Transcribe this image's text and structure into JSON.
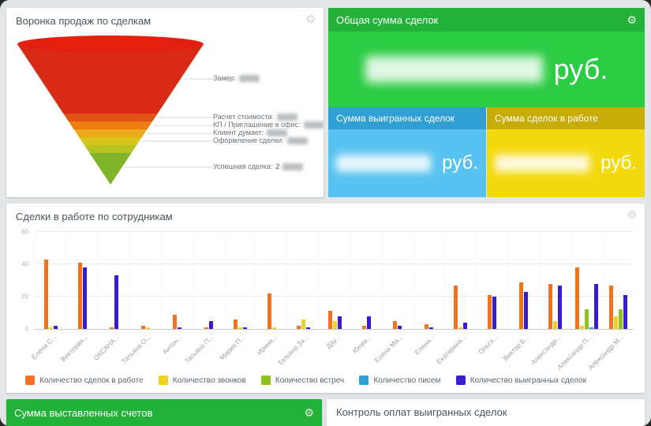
{
  "icons": {
    "gear": "⚙"
  },
  "colors": {
    "green_header": "#23b13a",
    "green_body": "#2ccc44",
    "blue_header": "#2f9fd4",
    "blue_body": "#58c3f0",
    "yellow_header": "#c7ac07",
    "yellow_body": "#f4d90f",
    "funnel_top": "#e3200f",
    "funnel_tip": "#6faa28"
  },
  "panels": {
    "funnel": {
      "title": "Воронка продаж по сделкам",
      "stages": [
        {
          "label": "Замер:",
          "value": ""
        },
        {
          "label": "Расчет стоимости:",
          "value": ""
        },
        {
          "label": "КП / Приглашение в офис:",
          "value": ""
        },
        {
          "label": "Клиент думает:",
          "value": ""
        },
        {
          "label": "Оформление сделки:",
          "value": ""
        },
        {
          "label": "Успешная сделка:",
          "value": "2"
        }
      ]
    },
    "totals": {
      "title": "Общая сумма сделок",
      "currency": "руб."
    },
    "won": {
      "title": "Сумма выигранных сделок",
      "currency": "руб."
    },
    "in_progress": {
      "title": "Сумма сделок в работе",
      "currency": "руб."
    },
    "by_employee": {
      "title": "Сделки в работе по сотрудникам"
    },
    "invoices": {
      "title": "Сумма выставленных счетов"
    },
    "payments": {
      "title": "Контроль оплат выигранных сделок"
    }
  },
  "chart_data": {
    "type": "bar",
    "title": "Сделки в работе по сотрудникам",
    "categories": [
      "Елена С...",
      "Виктория...",
      "ОКСАНА...",
      "Татьяна О...",
      "Антон...",
      "Татьяна П...",
      "Мария П...",
      "Ирина...",
      "Татьяна За...",
      "Дау...",
      "Юлия...",
      "Елена Ма...",
      "Елена...",
      "Екатерина...",
      "Ольга...",
      "Виктор Б...",
      "Александр...",
      "Александр П...",
      "Александр М..."
    ],
    "series": [
      {
        "name": "Количество сделок в работе",
        "color": "#f4711f",
        "values": [
          43,
          41,
          1,
          2,
          9,
          1,
          6,
          22,
          2,
          11,
          2,
          5,
          3,
          27,
          21,
          29,
          28,
          38,
          27
        ]
      },
      {
        "name": "Количество звонков",
        "color": "#f0d123",
        "values": [
          1,
          0,
          0,
          1,
          0,
          0,
          1,
          1,
          6,
          5,
          0,
          0,
          0,
          1,
          0,
          0,
          5,
          2,
          8
        ]
      },
      {
        "name": "Количество встреч",
        "color": "#8fc21e",
        "values": [
          0,
          0,
          0,
          0,
          0,
          0,
          0,
          0,
          0,
          0,
          0,
          0,
          0,
          0,
          0,
          0,
          0,
          12,
          12
        ]
      },
      {
        "name": "Количество писем",
        "color": "#2e9fd6",
        "values": [
          0,
          0,
          0,
          0,
          0,
          0,
          0,
          0,
          0,
          0,
          0,
          0,
          0,
          0,
          0,
          0,
          0,
          1,
          0
        ]
      },
      {
        "name": "Количество выигранных сделок",
        "color": "#3a1bcf",
        "values": [
          2,
          38,
          33,
          0,
          1,
          5,
          1,
          0,
          1,
          8,
          8,
          2,
          1,
          4,
          20,
          23,
          27,
          28,
          21
        ]
      }
    ],
    "xlabel": "",
    "ylabel": "",
    "ylim": [
      0,
      60
    ],
    "yticks": [
      0,
      20,
      40,
      60
    ],
    "grid": true,
    "legend_position": "bottom"
  }
}
